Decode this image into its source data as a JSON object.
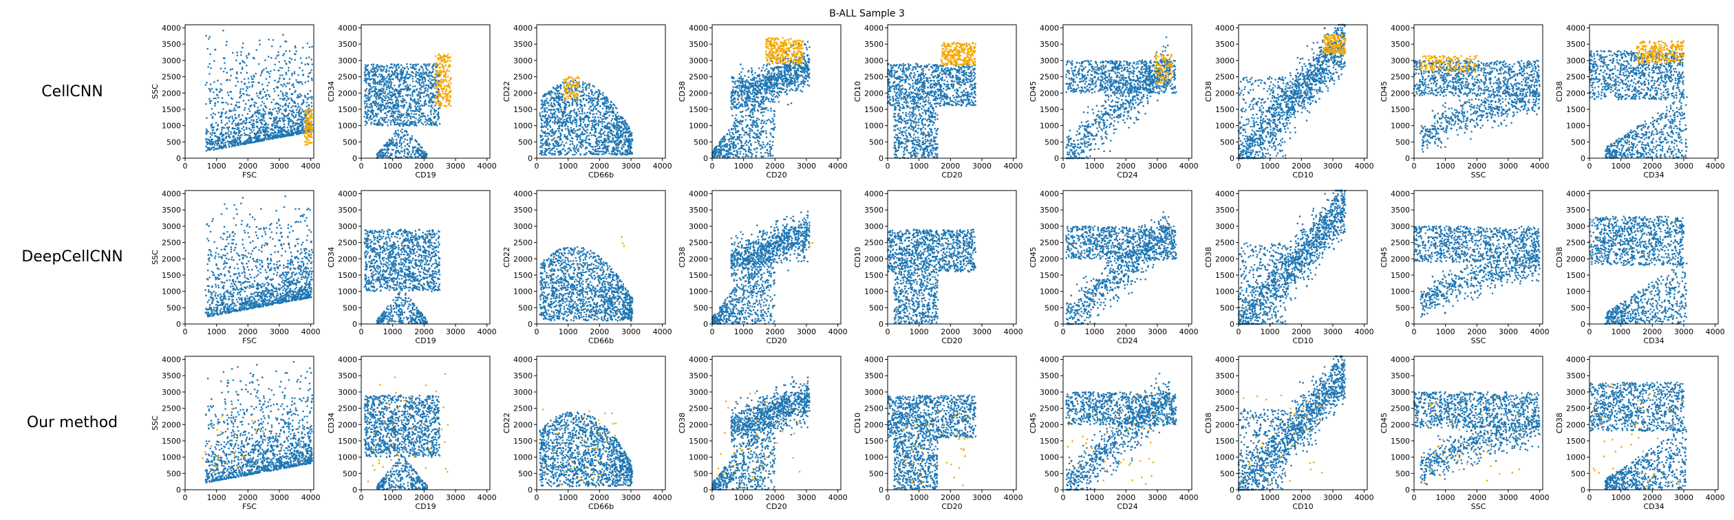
{
  "figure": {
    "title": "B-ALL Sample 3",
    "rows": [
      "CellCNN",
      "DeepCellCNN",
      "Our method"
    ]
  },
  "colors": {
    "background": "#1f77b4",
    "selected": "#f5a800"
  },
  "chart_data": {
    "type": "scatter",
    "title": "B-ALL Sample 3",
    "xlim": [
      0,
      4096
    ],
    "ylim": [
      0,
      4096
    ],
    "x_ticks": [
      0,
      1000,
      2000,
      3000,
      4000
    ],
    "y_ticks": [
      0,
      500,
      1000,
      1500,
      2000,
      2500,
      3000,
      3500,
      4000
    ],
    "panels": [
      {
        "x": "FSC",
        "y": "SSC"
      },
      {
        "x": "CD19",
        "y": "CD34"
      },
      {
        "x": "CD66b",
        "y": "CD22"
      },
      {
        "x": "CD20",
        "y": "CD38"
      },
      {
        "x": "CD20",
        "y": "CD10"
      },
      {
        "x": "CD24",
        "y": "CD45"
      },
      {
        "x": "CD10",
        "y": "CD38"
      },
      {
        "x": "SSC",
        "y": "CD45"
      },
      {
        "x": "CD34",
        "y": "CD38"
      }
    ],
    "series": [
      {
        "name": "CellCNN",
        "highlight": [
          {
            "x": [
              3800,
              4050
            ],
            "y": [
              400,
              1500
            ],
            "n": 120
          },
          {
            "x": [
              2350,
              2850
            ],
            "y": [
              1600,
              3200
            ],
            "n": 220
          },
          {
            "x": [
              850,
              1350
            ],
            "y": [
              1800,
              2500
            ],
            "n": 90
          },
          {
            "x": [
              1700,
              2900
            ],
            "y": [
              2900,
              3700
            ],
            "n": 320
          },
          {
            "x": [
              1700,
              2800
            ],
            "y": [
              2850,
              3550
            ],
            "n": 300
          },
          {
            "x": [
              2900,
              3500
            ],
            "y": [
              2300,
              3200
            ],
            "n": 100
          },
          {
            "x": [
              2700,
              3400
            ],
            "y": [
              3200,
              3800
            ],
            "n": 200
          },
          {
            "x": [
              200,
              2000
            ],
            "y": [
              2650,
              3150
            ],
            "n": 160
          },
          {
            "x": [
              1500,
              3000
            ],
            "y": [
              2900,
              3600
            ],
            "n": 260
          }
        ]
      },
      {
        "name": "DeepCellCNN",
        "highlight": [
          {
            "x": [
              0,
              0
            ],
            "y": [
              0,
              0
            ],
            "n": 0
          },
          {
            "x": [
              0,
              0
            ],
            "y": [
              0,
              0
            ],
            "n": 0
          },
          {
            "x": [
              2500,
              2800
            ],
            "y": [
              2300,
              2700
            ],
            "n": 3
          },
          {
            "x": [
              3100,
              3200
            ],
            "y": [
              2300,
              2500
            ],
            "n": 2
          },
          {
            "x": [
              0,
              0
            ],
            "y": [
              0,
              0
            ],
            "n": 0
          },
          {
            "x": [
              0,
              0
            ],
            "y": [
              0,
              0
            ],
            "n": 0
          },
          {
            "x": [
              0,
              0
            ],
            "y": [
              0,
              0
            ],
            "n": 0
          },
          {
            "x": [
              0,
              0
            ],
            "y": [
              0,
              0
            ],
            "n": 0
          },
          {
            "x": [
              0,
              0
            ],
            "y": [
              0,
              0
            ],
            "n": 0
          }
        ]
      },
      {
        "name": "Our method",
        "highlight": [
          {
            "x": [
              500,
              2500
            ],
            "y": [
              300,
              2500
            ],
            "n": 25
          },
          {
            "x": [
              200,
              2800
            ],
            "y": [
              200,
              3600
            ],
            "n": 40
          },
          {
            "x": [
              100,
              2600
            ],
            "y": [
              100,
              2600
            ],
            "n": 40
          },
          {
            "x": [
              100,
              2800
            ],
            "y": [
              100,
              3000
            ],
            "n": 40
          },
          {
            "x": [
              100,
              2600
            ],
            "y": [
              100,
              2600
            ],
            "n": 40
          },
          {
            "x": [
              100,
              3000
            ],
            "y": [
              100,
              3000
            ],
            "n": 40
          },
          {
            "x": [
              100,
              2800
            ],
            "y": [
              100,
              3000
            ],
            "n": 40
          },
          {
            "x": [
              100,
              3500
            ],
            "y": [
              100,
              2800
            ],
            "n": 40
          },
          {
            "x": [
              100,
              3000
            ],
            "y": [
              100,
              3300
            ],
            "n": 40
          }
        ]
      }
    ]
  }
}
